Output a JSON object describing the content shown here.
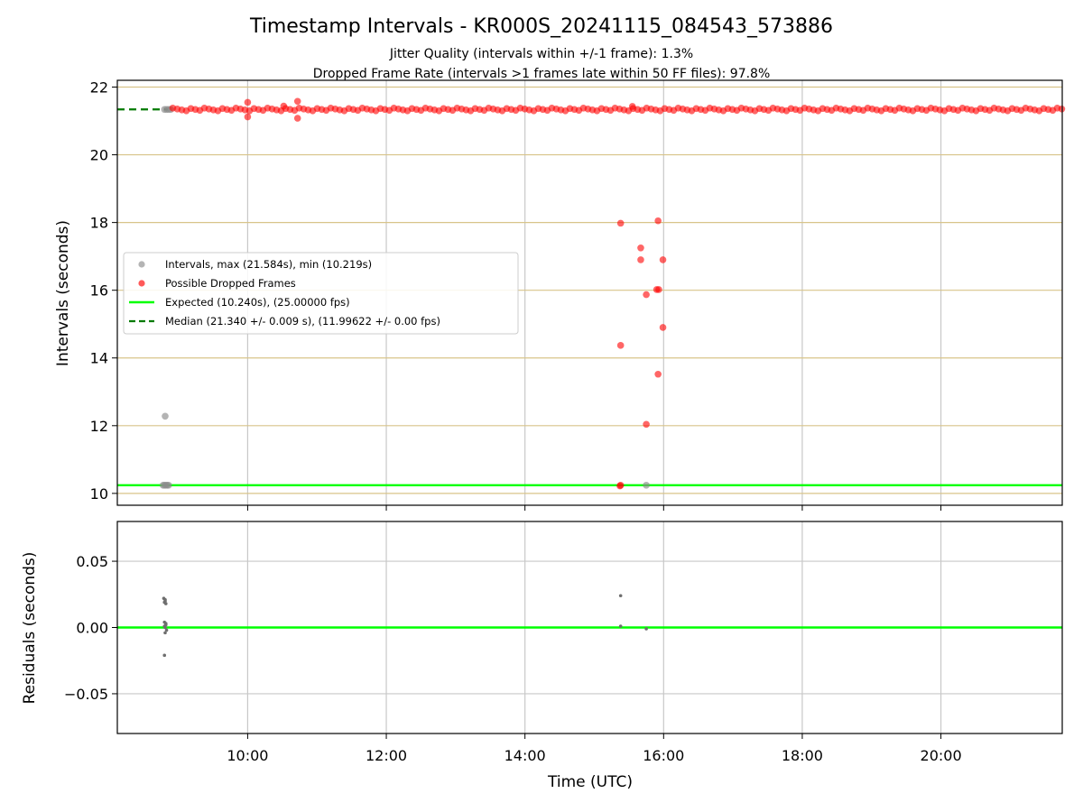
{
  "title": "Timestamp Intervals - KR000S_20241115_084543_573886",
  "subtitles": [
    "Jitter Quality (intervals within +/-1 frame): 1.3%",
    "Dropped Frame Rate (intervals >1 frames late within 50 FF files): 97.8%"
  ],
  "colors": {
    "grid_vertical": "#c8c8c8",
    "grid_horizontal_top": "#d8c48a",
    "grid_horizontal_bottom": "#c8c8c8",
    "expected_line": "#00ff00",
    "median_line": "#007a00",
    "intervals": "#8c8c8c",
    "dropped": "#ff0000",
    "residual_points": "#6e6e6e"
  },
  "chart_data": [
    {
      "type": "scatter",
      "panel": "intervals",
      "ylabel": "Intervals (seconds)",
      "xlabel": "",
      "xlim_hours": [
        8.12,
        21.75
      ],
      "ylim": [
        9.65,
        22.2
      ],
      "yticks": [
        10,
        12,
        14,
        16,
        18,
        20,
        22
      ],
      "grid": true,
      "legend_position": "center-left",
      "legend": [
        {
          "marker": "dot",
          "color_key": "intervals",
          "label": "Intervals, max (21.584s), min (10.219s)"
        },
        {
          "marker": "dot",
          "color_key": "dropped",
          "label": "Possible Dropped Frames"
        },
        {
          "marker": "line",
          "color_key": "expected_line",
          "label": "Expected (10.240s), (25.00000 fps)"
        },
        {
          "marker": "dashed",
          "color_key": "median_line",
          "label": "Median (21.340 +/- 0.009 s), (11.99622 +/- 0.00 fps)"
        }
      ],
      "expected_interval": 10.24,
      "median_interval": 21.34,
      "median_line_x_end": 8.85,
      "dense_band": {
        "x_start": 8.92,
        "x_end": 21.75,
        "y": 21.34
      },
      "series": [
        {
          "name": "Intervals",
          "color_key": "intervals",
          "points": [
            [
              8.78,
              10.24
            ],
            [
              8.8,
              10.24
            ],
            [
              8.82,
              10.24
            ],
            [
              8.84,
              10.24
            ],
            [
              8.86,
              10.24
            ],
            [
              8.81,
              12.28
            ],
            [
              8.8,
              21.34
            ],
            [
              8.83,
              21.34
            ],
            [
              8.86,
              21.34
            ],
            [
              8.89,
              21.34
            ],
            [
              15.75,
              10.24
            ]
          ]
        },
        {
          "name": "Possible Dropped Frames",
          "color_key": "dropped",
          "points": [
            [
              10.0,
              21.55
            ],
            [
              10.0,
              21.12
            ],
            [
              10.52,
              21.44
            ],
            [
              10.72,
              21.58
            ],
            [
              10.72,
              21.08
            ],
            [
              15.55,
              21.43
            ],
            [
              15.38,
              17.98
            ],
            [
              15.38,
              14.37
            ],
            [
              15.38,
              10.24
            ],
            [
              15.37,
              10.22
            ],
            [
              15.67,
              17.25
            ],
            [
              15.67,
              16.9
            ],
            [
              15.75,
              15.87
            ],
            [
              15.75,
              12.04
            ],
            [
              15.92,
              18.05
            ],
            [
              15.9,
              16.02
            ],
            [
              15.93,
              16.02
            ],
            [
              15.92,
              13.52
            ],
            [
              15.99,
              16.9
            ],
            [
              15.99,
              14.9
            ]
          ]
        }
      ],
      "xticks": [
        "10:00",
        "12:00",
        "14:00",
        "16:00",
        "18:00",
        "20:00"
      ],
      "xtick_hours": [
        10,
        12,
        14,
        16,
        18,
        20
      ]
    },
    {
      "type": "scatter",
      "panel": "residuals",
      "ylabel": "Residuals (seconds)",
      "xlabel": "Time (UTC)",
      "xlim_hours": [
        8.12,
        21.75
      ],
      "ylim": [
        -0.08,
        0.08
      ],
      "yticks": [
        0.05,
        0.0,
        -0.05
      ],
      "ytick_labels": [
        "0.05",
        "0.00",
        "−0.05"
      ],
      "grid": true,
      "zero_line": 0.0,
      "xticks": [
        "10:00",
        "12:00",
        "14:00",
        "16:00",
        "18:00",
        "20:00"
      ],
      "xtick_hours": [
        10,
        12,
        14,
        16,
        18,
        20
      ],
      "series": [
        {
          "name": "Residuals",
          "color_key": "residual_points",
          "points": [
            [
              8.79,
              0.022
            ],
            [
              8.81,
              0.021
            ],
            [
              8.8,
              0.019
            ],
            [
              8.82,
              0.018
            ],
            [
              8.81,
              0.02
            ],
            [
              8.8,
              0.004
            ],
            [
              8.82,
              0.003
            ],
            [
              8.8,
              0.001
            ],
            [
              8.81,
              0.0
            ],
            [
              8.83,
              -0.002
            ],
            [
              8.81,
              -0.004
            ],
            [
              8.8,
              -0.021
            ],
            [
              8.82,
              0.002
            ],
            [
              15.38,
              0.024
            ],
            [
              15.38,
              0.001
            ],
            [
              15.75,
              -0.001
            ]
          ]
        }
      ]
    }
  ]
}
